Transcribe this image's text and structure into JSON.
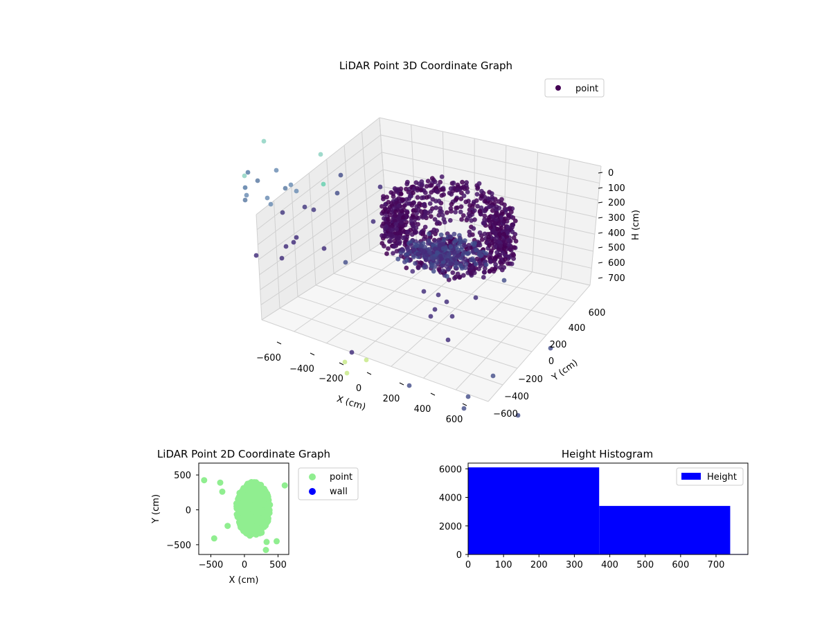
{
  "colors": {
    "pane_left": "#ececec",
    "pane_right": "#f2f2f2",
    "pane_floor": "#f7f7f7",
    "grid": "#d0d0d0",
    "point2d": "#90ee90",
    "wall": "#0000ff",
    "hist": "#0000ff"
  },
  "chart_data": [
    {
      "type": "scatter",
      "title": "LiDAR Point 3D Coordinate Graph",
      "xlabel": "X (cm)",
      "ylabel": "Y (cm)",
      "zlabel": "H (cm)",
      "xticks": [
        -600,
        -400,
        -200,
        0,
        200,
        400,
        600
      ],
      "yticks": [
        -600,
        -400,
        -200,
        0,
        200,
        400,
        600
      ],
      "zticks": [
        0,
        100,
        200,
        300,
        400,
        500,
        600,
        700
      ],
      "xlim": [
        -650,
        650
      ],
      "ylim": [
        -650,
        650
      ],
      "zlim": [
        750,
        0
      ],
      "grid": true,
      "colormap": "viridis",
      "legend": {
        "position": "top-right",
        "entries": [
          "point"
        ]
      }
    },
    {
      "type": "scatter",
      "title": "LiDAR Point 2D Coordinate Graph",
      "xlabel": "X (cm)",
      "ylabel": "Y (cm)",
      "xticks": [
        -500,
        0,
        500
      ],
      "yticks": [
        -500,
        0,
        500
      ],
      "xlim": [
        -680,
        660
      ],
      "ylim": [
        -640,
        670
      ],
      "series": [
        {
          "name": "point",
          "color": "#90ee90",
          "outliers": [
            [
              -600,
              425
            ],
            [
              -360,
              390
            ],
            [
              -330,
              260
            ],
            [
              -450,
              -410
            ],
            [
              330,
              -460
            ],
            [
              480,
              -450
            ],
            [
              600,
              350
            ],
            [
              320,
              -575
            ],
            [
              -250,
              -230
            ]
          ]
        },
        {
          "name": "wall",
          "color": "#0000ff",
          "points": []
        }
      ],
      "legend": {
        "position": "outside-right",
        "entries": [
          "point",
          "wall"
        ]
      }
    },
    {
      "type": "bar",
      "title": "Height Histogram",
      "xticks": [
        0,
        100,
        200,
        300,
        400,
        500,
        600,
        700
      ],
      "yticks": [
        0,
        2000,
        4000,
        6000
      ],
      "xlim": [
        0,
        790
      ],
      "ylim": [
        0,
        6400
      ],
      "bins": [
        {
          "x0": 0,
          "x1": 370,
          "count": 6100
        },
        {
          "x0": 370,
          "x1": 740,
          "count": 3400
        },
        {
          "x0": 740,
          "x1": 790,
          "count": 30
        }
      ],
      "series_name": "Height",
      "legend": {
        "position": "top-right",
        "entries": [
          "Height"
        ]
      }
    }
  ]
}
